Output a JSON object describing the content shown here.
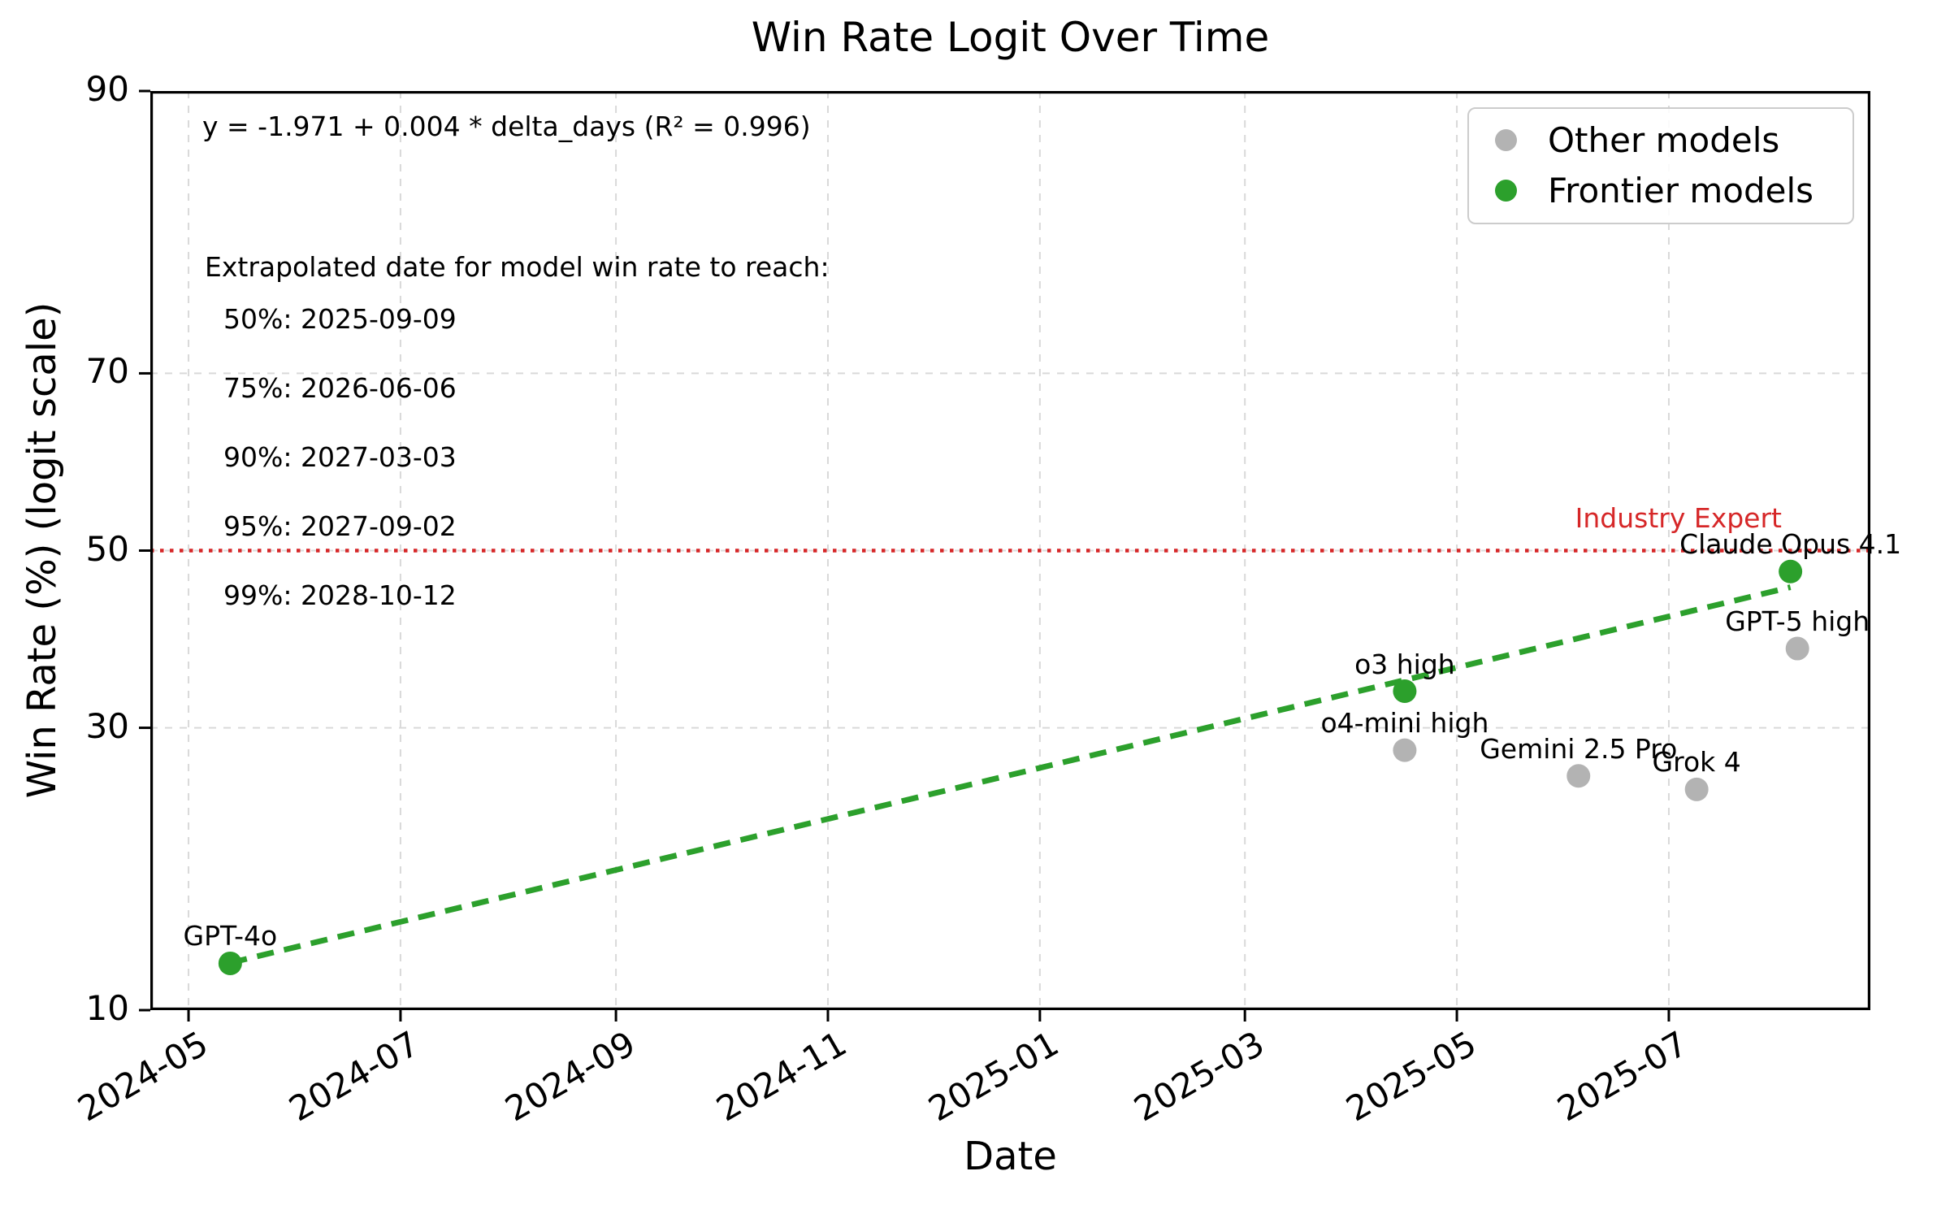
{
  "title": "Win Rate Logit Over Time",
  "axes": {
    "xlabel": "Date",
    "ylabel": "Win Rate (%) (logit scale)"
  },
  "legend": {
    "items": [
      {
        "label": "Other models",
        "color": "#b3b3b3"
      },
      {
        "label": "Frontier models",
        "color": "#2ca02c"
      }
    ]
  },
  "annotations": {
    "equation": "y = -1.971 + 0.004 * delta_days (R² = 0.996)",
    "extrapolation_heading": "Extrapolated date for model win rate to reach:",
    "extrapolations": [
      {
        "pct": "50%",
        "date": "2025-09-09"
      },
      {
        "pct": "75%",
        "date": "2026-06-06"
      },
      {
        "pct": "90%",
        "date": "2027-03-03"
      },
      {
        "pct": "95%",
        "date": "2027-09-02"
      },
      {
        "pct": "99%",
        "date": "2028-10-12"
      }
    ]
  },
  "chart_data": {
    "type": "scatter",
    "title": "Win Rate Logit Over Time",
    "xlabel": "Date",
    "ylabel": "Win Rate (%) (logit scale)",
    "grid": true,
    "legend_position": "upper right",
    "x_axis": {
      "scale": "time",
      "range": [
        "2024-04-20",
        "2025-08-28"
      ],
      "ticks": [
        {
          "label": "2024-05",
          "date": "2024-05-01"
        },
        {
          "label": "2024-07",
          "date": "2024-07-01"
        },
        {
          "label": "2024-09",
          "date": "2024-09-01"
        },
        {
          "label": "2024-11",
          "date": "2024-11-01"
        },
        {
          "label": "2025-01",
          "date": "2025-01-01"
        },
        {
          "label": "2025-03",
          "date": "2025-03-01"
        },
        {
          "label": "2025-05",
          "date": "2025-05-01"
        },
        {
          "label": "2025-07",
          "date": "2025-07-01"
        }
      ]
    },
    "y_axis": {
      "scale": "logit",
      "range_pct": [
        10,
        90
      ],
      "ticks_pct": [
        90,
        70,
        50,
        30,
        10
      ],
      "gridlines_pct": [
        70,
        50,
        30
      ]
    },
    "series": [
      {
        "name": "Frontier models",
        "color": "#2ca02c",
        "points": [
          {
            "label": "GPT-4o",
            "date": "2024-05-13",
            "win_rate_pct": 12.2
          },
          {
            "label": "o3 high",
            "date": "2025-04-16",
            "win_rate_pct": 33.8
          },
          {
            "label": "Claude Opus 4.1",
            "date": "2025-08-05",
            "win_rate_pct": 47.5
          }
        ]
      },
      {
        "name": "Other models",
        "color": "#b3b3b3",
        "points": [
          {
            "label": "o4-mini high",
            "date": "2025-04-16",
            "win_rate_pct": 27.8
          },
          {
            "label": "Gemini 2.5 Pro",
            "date": "2025-06-05",
            "win_rate_pct": 25.4
          },
          {
            "label": "Grok 4",
            "date": "2025-07-09",
            "win_rate_pct": 24.2
          },
          {
            "label": "GPT-5 high",
            "date": "2025-08-07",
            "win_rate_pct": 38.5
          }
        ]
      }
    ],
    "trend_line": {
      "fit_equation": "y = -1.971 + 0.004 * delta_days",
      "r_squared": 0.996,
      "start_date": "2024-05-13",
      "end_date": "2025-08-05",
      "intercept_logit": -1.971,
      "slope_logit_per_day": 0.004,
      "color": "#2ca02c",
      "style": "dashed"
    },
    "reference_line": {
      "value_pct": 50,
      "label": "Industry Expert",
      "color": "#d62728",
      "style": "dotted"
    }
  }
}
